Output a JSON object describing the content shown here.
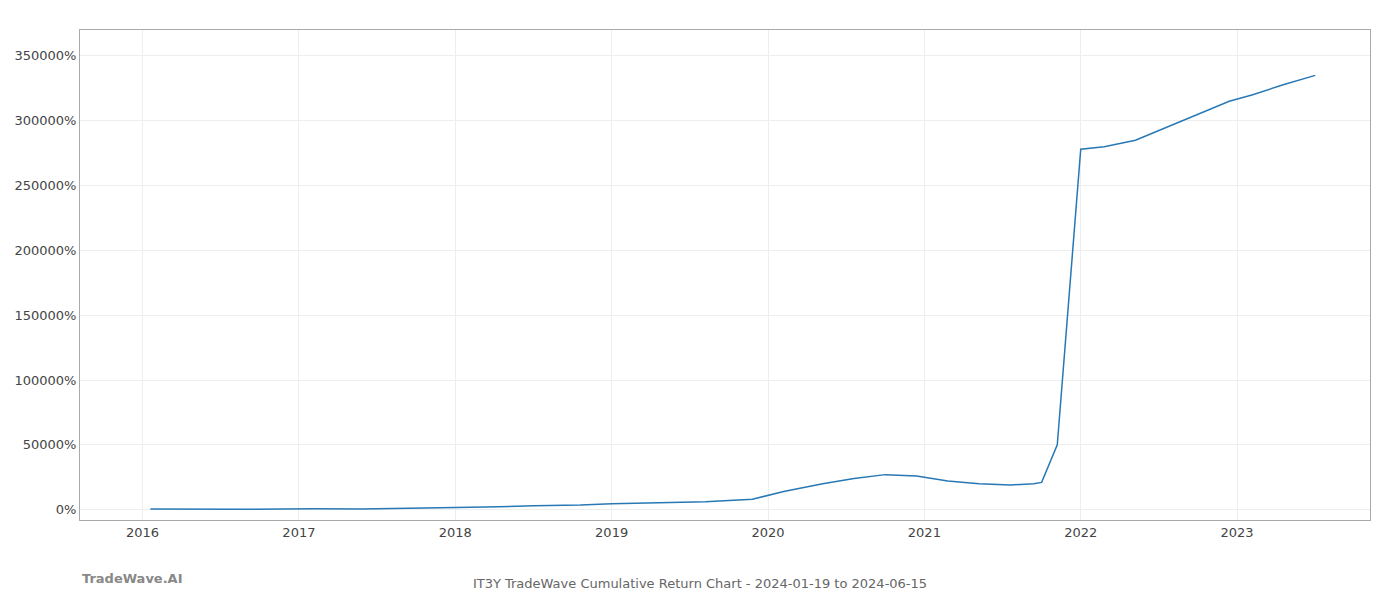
{
  "chart_data": {
    "type": "line",
    "title": "IT3Y TradeWave Cumulative Return Chart - 2024-01-19 to 2024-06-15",
    "annotations": [
      {
        "text": "TradeWave.AI"
      }
    ],
    "x": [
      2016.05,
      2016.3,
      2016.6,
      2016.9,
      2017.1,
      2017.4,
      2017.7,
      2017.95,
      2018.2,
      2018.5,
      2018.8,
      2019.0,
      2019.3,
      2019.6,
      2019.9,
      2020.1,
      2020.35,
      2020.55,
      2020.75,
      2020.95,
      2021.15,
      2021.35,
      2021.55,
      2021.7,
      2021.75,
      2021.85,
      2022.0,
      2022.15,
      2022.35,
      2022.55,
      2022.75,
      2022.95,
      2023.1,
      2023.3,
      2023.5
    ],
    "values": [
      500,
      300,
      200,
      400,
      700,
      500,
      900,
      1200,
      2000,
      3000,
      3500,
      4500,
      5500,
      6000,
      8000,
      14000,
      20000,
      24000,
      27000,
      26000,
      22000,
      20000,
      19000,
      20000,
      21000,
      50000,
      278000,
      280000,
      285000,
      295000,
      305000,
      315000,
      320000,
      328000,
      335000
    ],
    "color": "#2878b5",
    "xlim": [
      2015.6,
      2023.85
    ],
    "xticks": [
      2016,
      2017,
      2018,
      2019,
      2020,
      2021,
      2022,
      2023
    ],
    "ylim": [
      -8000,
      370000
    ],
    "yticks": [
      {
        "value": 0,
        "label": "0%"
      },
      {
        "value": 50000,
        "label": "50000%"
      },
      {
        "value": 100000,
        "label": "100000%"
      },
      {
        "value": 150000,
        "label": "150000%"
      },
      {
        "value": 200000,
        "label": "200000%"
      },
      {
        "value": 250000,
        "label": "250000%"
      },
      {
        "value": 300000,
        "label": "300000%"
      },
      {
        "value": 350000,
        "label": "350000%"
      }
    ],
    "grid": true
  }
}
